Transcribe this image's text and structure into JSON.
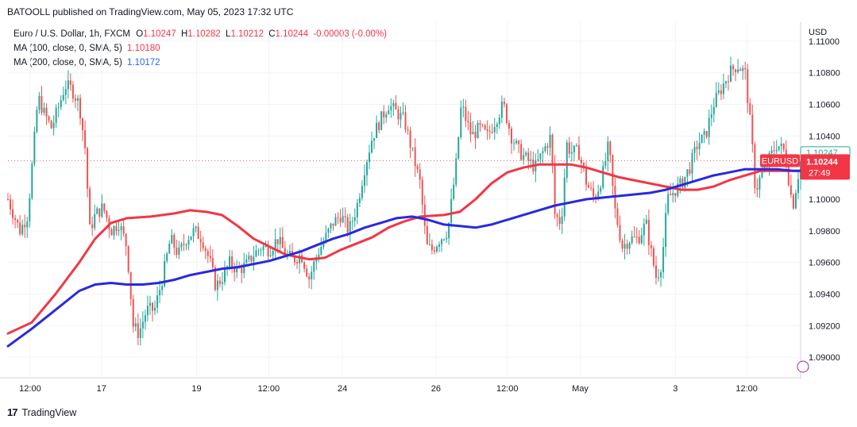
{
  "header": {
    "published": "BATOOLL published on TradingView.com, May 05, 2023 17:32 UTC"
  },
  "legend": {
    "symbol": "Euro / U.S. Dollar, 1h, FXCM",
    "open_label": "O",
    "open": "1.10247",
    "high_label": "H",
    "high": "1.10282",
    "low_label": "L",
    "low": "1.10212",
    "close_label": "C",
    "close": "1.10244",
    "change": "-0.00003 (-0.00%)",
    "ma100_label": "MA (100, close, 0, SMA, 5)",
    "ma100_value": "1.10180",
    "ma200_label": "MA (200, close, 0, SMA, 5)",
    "ma200_value": "1.10172"
  },
  "axis": {
    "currency": "USD",
    "y_ticks": [
      "1.11000",
      "1.10800",
      "1.10600",
      "1.10400",
      "1.10200",
      "1.10000",
      "1.09800",
      "1.09600",
      "1.09400",
      "1.09200",
      "1.09000"
    ],
    "x_ticks": [
      "12:00",
      "17",
      "19",
      "12:00",
      "24",
      "26",
      "12:00",
      "May",
      "3",
      "12:00"
    ]
  },
  "price_labels": {
    "last_price": "1.10247",
    "symbol_tag": "EURUSD",
    "current_price": "1.10244",
    "countdown": "27:49"
  },
  "footer": {
    "brand": "TradingView",
    "logo_glyph": "17"
  },
  "colors": {
    "up": "#26a69a",
    "down": "#ef5350",
    "ma100": "#f23645",
    "ma200": "#2929e0",
    "grid": "#f0f3fa",
    "dotted": "#ef5350"
  },
  "chart_data": {
    "type": "candlestick",
    "title": "Euro / U.S. Dollar, 1h, FXCM",
    "ylim": [
      1.0888,
      1.1112
    ],
    "x_range": [
      0,
      100
    ],
    "y_ticks": [
      1.09,
      1.092,
      1.094,
      1.096,
      1.098,
      1.1,
      1.102,
      1.104,
      1.106,
      1.108,
      1.11
    ],
    "x_ticks": [
      {
        "x": 2.8,
        "label": "12:00"
      },
      {
        "x": 11.8,
        "label": "17"
      },
      {
        "x": 23.8,
        "label": "19"
      },
      {
        "x": 32.9,
        "label": "12:00"
      },
      {
        "x": 42.2,
        "label": "24"
      },
      {
        "x": 54.0,
        "label": "26"
      },
      {
        "x": 63.0,
        "label": "12:00"
      },
      {
        "x": 72.2,
        "label": "May"
      },
      {
        "x": 84.2,
        "label": "3"
      },
      {
        "x": 93.2,
        "label": "12:00"
      }
    ],
    "price_path": [
      [
        0,
        1.1
      ],
      [
        1.5,
        1.098
      ],
      [
        2.5,
        1.099
      ],
      [
        3.2,
        1.103
      ],
      [
        3.8,
        1.1065
      ],
      [
        4.5,
        1.1055
      ],
      [
        5.5,
        1.1045
      ],
      [
        6.5,
        1.106
      ],
      [
        7.2,
        1.1072
      ],
      [
        8.0,
        1.107
      ],
      [
        9.0,
        1.106
      ],
      [
        9.8,
        1.103
      ],
      [
        10.3,
        1.098
      ],
      [
        11.0,
        1.099
      ],
      [
        12.0,
        1.0995
      ],
      [
        13.0,
        1.098
      ],
      [
        14.0,
        1.0985
      ],
      [
        15.0,
        1.097
      ],
      [
        15.8,
        1.092
      ],
      [
        16.5,
        1.0915
      ],
      [
        17.5,
        1.093
      ],
      [
        18.5,
        1.093
      ],
      [
        19.5,
        1.095
      ],
      [
        20.5,
        1.0975
      ],
      [
        21.5,
        1.0965
      ],
      [
        22.5,
        1.0975
      ],
      [
        23.5,
        1.098
      ],
      [
        24.5,
        1.0975
      ],
      [
        25.5,
        1.096
      ],
      [
        26.2,
        1.0945
      ],
      [
        27.0,
        1.095
      ],
      [
        28.0,
        1.096
      ],
      [
        29.0,
        1.0955
      ],
      [
        30.0,
        1.0958
      ],
      [
        31.0,
        1.0965
      ],
      [
        32.0,
        1.097
      ],
      [
        33.0,
        1.0968
      ],
      [
        34.0,
        1.0975
      ],
      [
        35.0,
        1.0965
      ],
      [
        36.0,
        1.0962
      ],
      [
        37.0,
        1.0965
      ],
      [
        38.0,
        1.095
      ],
      [
        39.0,
        1.0965
      ],
      [
        40.0,
        1.0975
      ],
      [
        41.0,
        1.0985
      ],
      [
        42.0,
        1.099
      ],
      [
        43.0,
        1.098
      ],
      [
        44.0,
        1.0995
      ],
      [
        45.0,
        1.102
      ],
      [
        46.0,
        1.104
      ],
      [
        47.0,
        1.105
      ],
      [
        48.0,
        1.106
      ],
      [
        49.0,
        1.1055
      ],
      [
        50.0,
        1.105
      ],
      [
        51.0,
        1.103
      ],
      [
        52.0,
        1.101
      ],
      [
        52.8,
        1.097
      ],
      [
        53.5,
        1.0968
      ],
      [
        54.5,
        1.0975
      ],
      [
        55.5,
        1.098
      ],
      [
        56.5,
        1.102
      ],
      [
        57.2,
        1.106
      ],
      [
        57.8,
        1.105
      ],
      [
        58.5,
        1.104
      ],
      [
        59.5,
        1.1045
      ],
      [
        60.5,
        1.104
      ],
      [
        61.5,
        1.105
      ],
      [
        62.5,
        1.106
      ],
      [
        63.5,
        1.104
      ],
      [
        64.5,
        1.103
      ],
      [
        65.5,
        1.1025
      ],
      [
        66.5,
        1.102
      ],
      [
        67.5,
        1.103
      ],
      [
        68.5,
        1.104
      ],
      [
        69.0,
        1.099
      ],
      [
        69.8,
        1.0985
      ],
      [
        70.5,
        1.1035
      ],
      [
        71.0,
        1.103
      ],
      [
        72.0,
        1.103
      ],
      [
        73.0,
        1.101
      ],
      [
        74.0,
        1.1
      ],
      [
        75.0,
        1.1015
      ],
      [
        75.8,
        1.1035
      ],
      [
        76.5,
        1.0995
      ],
      [
        77.5,
        1.097
      ],
      [
        78.5,
        1.0975
      ],
      [
        79.5,
        1.0975
      ],
      [
        80.5,
        1.0985
      ],
      [
        81.0,
        1.097
      ],
      [
        81.8,
        1.095
      ],
      [
        82.5,
        1.096
      ],
      [
        83.2,
        1.1
      ],
      [
        84.0,
        1.1005
      ],
      [
        85.0,
        1.101
      ],
      [
        86.0,
        1.102
      ],
      [
        87.0,
        1.1035
      ],
      [
        88.0,
        1.104
      ],
      [
        89.0,
        1.106
      ],
      [
        90.0,
        1.107
      ],
      [
        91.0,
        1.108
      ],
      [
        92.0,
        1.1085
      ],
      [
        93.0,
        1.108
      ],
      [
        93.8,
        1.104
      ],
      [
        94.3,
        1.1005
      ],
      [
        95.0,
        1.1015
      ],
      [
        96.0,
        1.1025
      ],
      [
        97.0,
        1.1035
      ],
      [
        98.0,
        1.103
      ],
      [
        99.0,
        1.0995
      ],
      [
        99.5,
        1.101
      ],
      [
        100,
        1.1024
      ]
    ],
    "ma100": [
      [
        0,
        1.0915
      ],
      [
        3,
        1.0922
      ],
      [
        6,
        1.094
      ],
      [
        9,
        1.096
      ],
      [
        11,
        1.0975
      ],
      [
        13,
        1.0985
      ],
      [
        15,
        1.0988
      ],
      [
        18,
        1.0989
      ],
      [
        21,
        1.0991
      ],
      [
        23,
        1.0993
      ],
      [
        25,
        1.0992
      ],
      [
        27,
        1.099
      ],
      [
        29,
        1.0983
      ],
      [
        31,
        1.0975
      ],
      [
        33,
        1.097
      ],
      [
        35,
        1.0965
      ],
      [
        38,
        1.0962
      ],
      [
        40,
        1.0963
      ],
      [
        42,
        1.0968
      ],
      [
        44,
        1.0972
      ],
      [
        46,
        1.0976
      ],
      [
        48,
        1.0982
      ],
      [
        50,
        1.0986
      ],
      [
        52,
        1.0989
      ],
      [
        55,
        1.099
      ],
      [
        57,
        1.0992
      ],
      [
        59,
        1.1
      ],
      [
        61,
        1.101
      ],
      [
        63,
        1.1017
      ],
      [
        65,
        1.102
      ],
      [
        67,
        1.1022
      ],
      [
        69,
        1.1022
      ],
      [
        71,
        1.1022
      ],
      [
        73,
        1.102
      ],
      [
        75,
        1.1017
      ],
      [
        77,
        1.1014
      ],
      [
        79,
        1.1012
      ],
      [
        81,
        1.101
      ],
      [
        83,
        1.1008
      ],
      [
        85,
        1.1006
      ],
      [
        87,
        1.1006
      ],
      [
        89,
        1.1008
      ],
      [
        91,
        1.1012
      ],
      [
        93,
        1.1015
      ],
      [
        95,
        1.1018
      ],
      [
        97,
        1.1018
      ],
      [
        99,
        1.1018
      ],
      [
        100,
        1.1018
      ]
    ],
    "ma200": [
      [
        0,
        1.0907
      ],
      [
        3,
        1.0918
      ],
      [
        6,
        1.093
      ],
      [
        9,
        1.0942
      ],
      [
        11,
        1.0946
      ],
      [
        13,
        1.0947
      ],
      [
        15,
        1.0946
      ],
      [
        17,
        1.0946
      ],
      [
        19,
        1.0947
      ],
      [
        21,
        1.0949
      ],
      [
        23,
        1.0952
      ],
      [
        25,
        1.0954
      ],
      [
        27,
        1.0956
      ],
      [
        29,
        1.0957
      ],
      [
        31,
        1.0959
      ],
      [
        33,
        1.0961
      ],
      [
        35,
        1.0964
      ],
      [
        37,
        1.0967
      ],
      [
        39,
        1.0971
      ],
      [
        41,
        1.0975
      ],
      [
        43,
        1.0978
      ],
      [
        45,
        1.0982
      ],
      [
        47,
        1.0985
      ],
      [
        49,
        1.0988
      ],
      [
        51,
        1.0989
      ],
      [
        53,
        1.0987
      ],
      [
        55,
        1.0984
      ],
      [
        57,
        1.0983
      ],
      [
        59,
        1.0982
      ],
      [
        61,
        1.0984
      ],
      [
        63,
        1.0987
      ],
      [
        65,
        1.099
      ],
      [
        67,
        1.0993
      ],
      [
        69,
        1.0996
      ],
      [
        71,
        1.0998
      ],
      [
        73,
        1.1
      ],
      [
        75,
        1.1001
      ],
      [
        77,
        1.1002
      ],
      [
        79,
        1.1003
      ],
      [
        81,
        1.1004
      ],
      [
        83,
        1.1006
      ],
      [
        85,
        1.1009
      ],
      [
        87,
        1.1012
      ],
      [
        89,
        1.1015
      ],
      [
        91,
        1.1017
      ],
      [
        93,
        1.1019
      ],
      [
        95,
        1.1019
      ],
      [
        97,
        1.1019
      ],
      [
        99,
        1.1018
      ],
      [
        100,
        1.1018
      ]
    ]
  }
}
